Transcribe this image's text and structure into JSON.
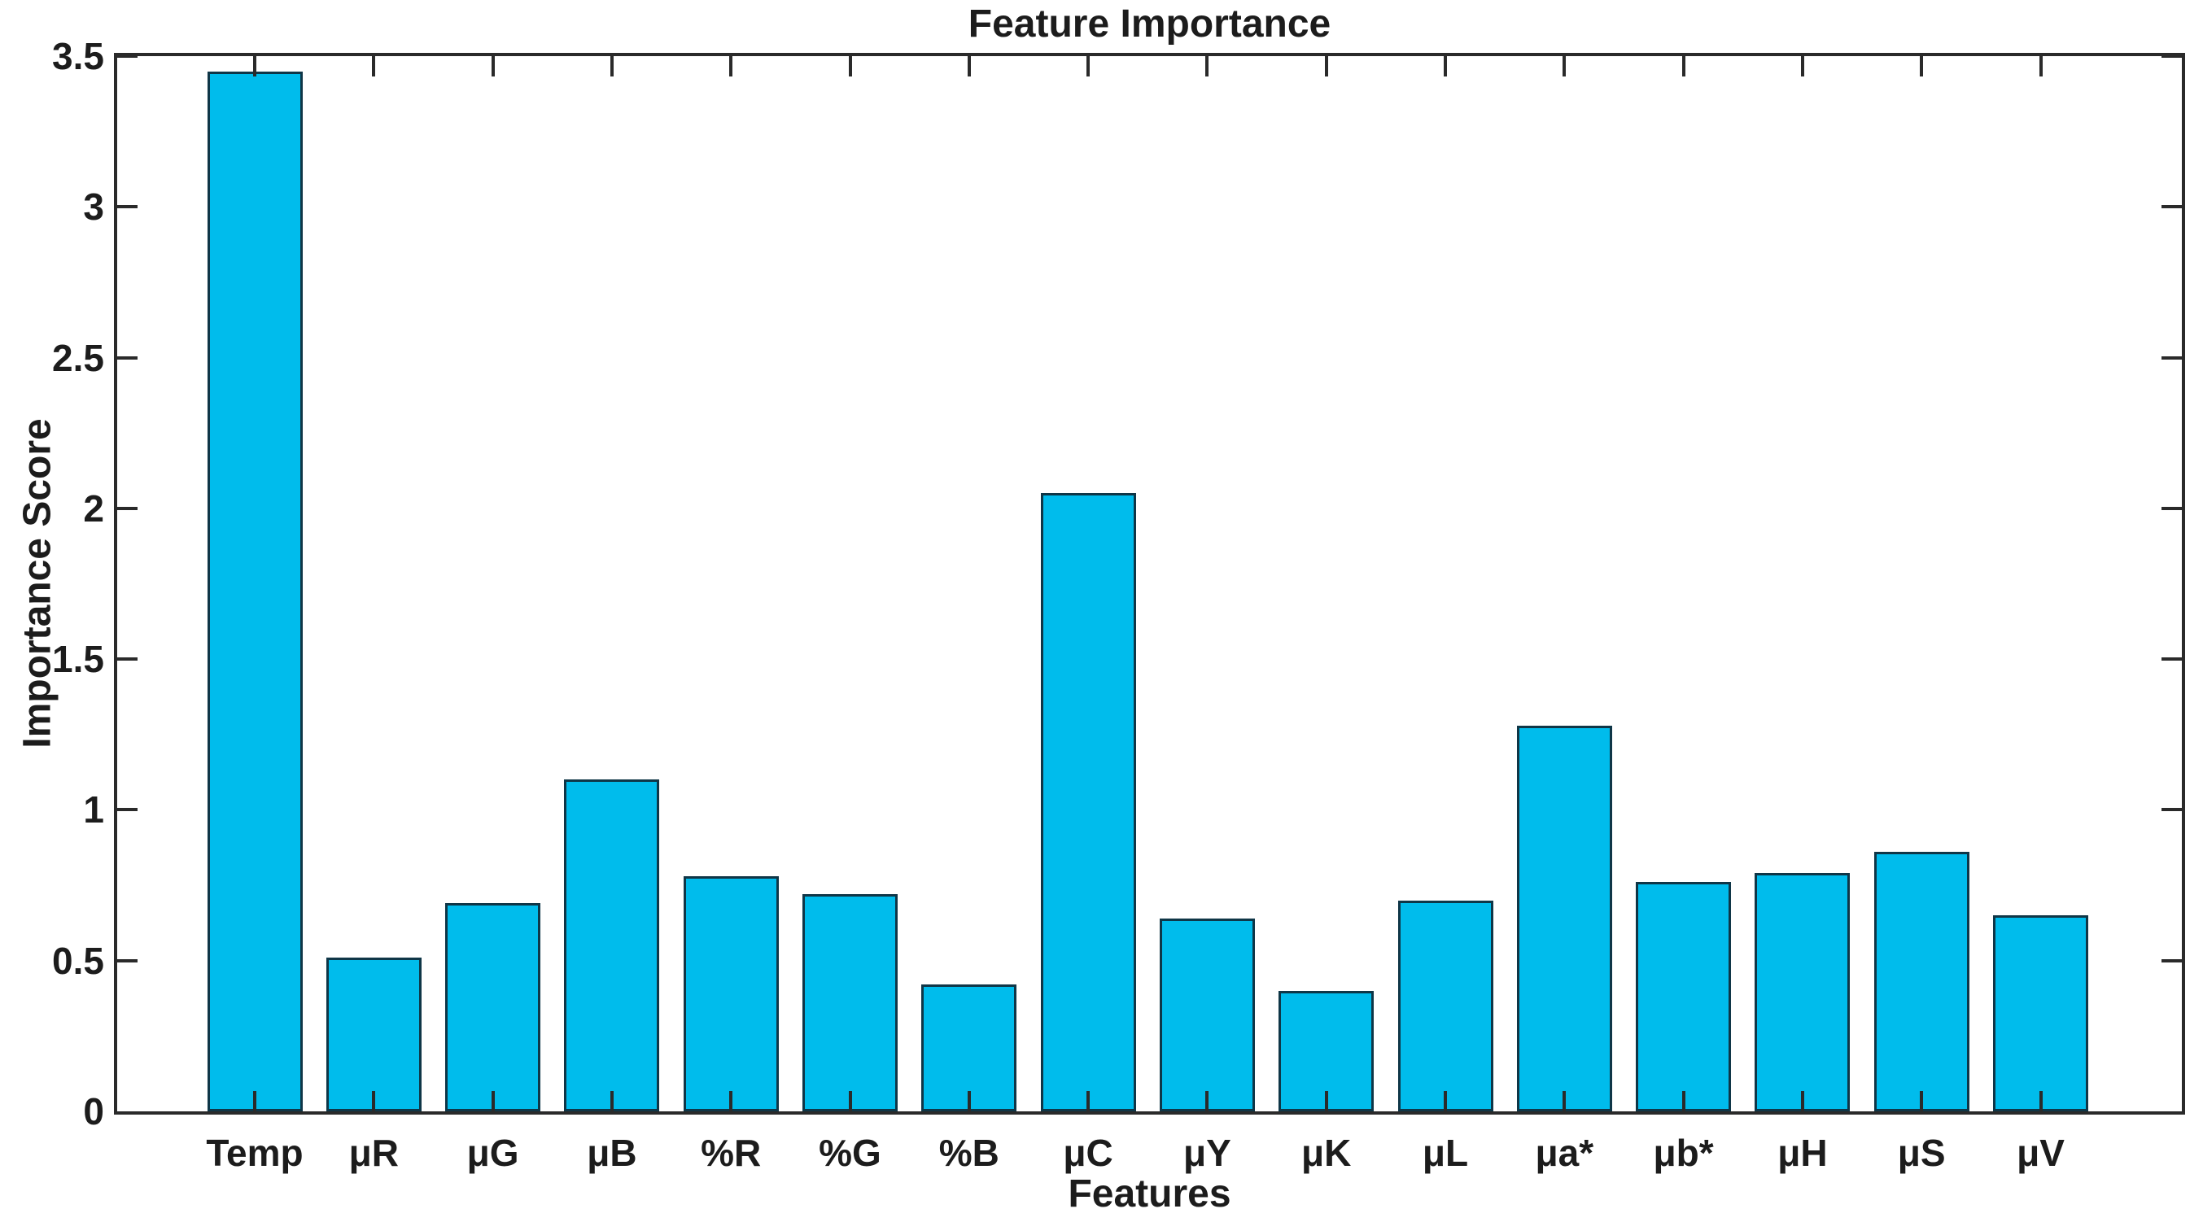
{
  "chart_data": {
    "type": "bar",
    "title": "Feature Importance",
    "xlabel": "Features",
    "ylabel": "Importance Score",
    "categories": [
      "Temp",
      "μR",
      "μG",
      "μB",
      "%R",
      "%G",
      "%B",
      "μC",
      "μY",
      "μK",
      "μL",
      "μa*",
      "μb*",
      "μH",
      "μS",
      "μV"
    ],
    "values": [
      3.45,
      0.51,
      0.69,
      1.1,
      0.78,
      0.72,
      0.42,
      2.05,
      0.64,
      0.4,
      0.7,
      1.28,
      0.76,
      0.79,
      0.86,
      0.65
    ],
    "ylim": [
      0,
      3.5
    ],
    "yticks": [
      0,
      0.5,
      1,
      1.5,
      2,
      2.5,
      3,
      3.5
    ],
    "grid": false,
    "legend_position": "none",
    "colors": {
      "bar_fill": "#00bcec",
      "bar_edge": "#0f3647",
      "axis": "#2a2a2a",
      "text": "#1c1c1c",
      "background": "#ffffff"
    }
  }
}
